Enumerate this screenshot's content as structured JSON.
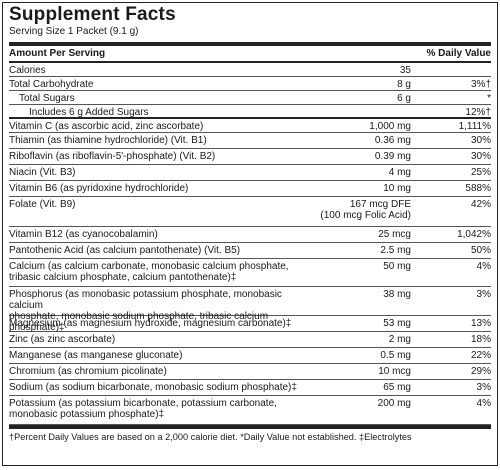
{
  "title": "Supplement Facts",
  "serving_size": "Serving Size 1 Packet (9.1 g)",
  "header": {
    "left": "Amount Per Serving",
    "right": "% Daily Value"
  },
  "rows": [
    {
      "name": "Calories",
      "amount": "35",
      "dv": "",
      "h": 14,
      "indent": 0
    },
    {
      "name": "Total Carbohydrate",
      "amount": "8 g",
      "dv": "3%†",
      "h": 14,
      "indent": 0
    },
    {
      "name": "Total Sugars",
      "amount": "6 g",
      "dv": "*",
      "h": 14,
      "indent": 1
    },
    {
      "name": "Includes 6 g Added Sugars",
      "amount": "",
      "dv": "12%†",
      "h": 14,
      "indent": 2,
      "thick": true
    },
    {
      "name": "Vitamin C (as ascorbic acid, zinc ascorbate)",
      "amount": "1,000 mg",
      "dv": "1,111%",
      "h": 14,
      "indent": 0
    },
    {
      "name": "Thiamin (as thiamine hydrochloride) (Vit. B1)",
      "amount": "0.36 mg",
      "dv": "30%",
      "h": 16,
      "indent": 0
    },
    {
      "name": "Riboflavin (as riboflavin-5'-phosphate) (Vit. B2)",
      "amount": "0.39 mg",
      "dv": "30%",
      "h": 16,
      "indent": 0
    },
    {
      "name": "Niacin (Vit. B3)",
      "amount": "4 mg",
      "dv": "25%",
      "h": 16,
      "indent": 0
    },
    {
      "name": "Vitamin B6 (as pyridoxine hydrochloride)",
      "amount": "10 mg",
      "dv": "588%",
      "h": 16,
      "indent": 0
    },
    {
      "name": "Folate (Vit. B9)",
      "amount": "167 mcg DFE\n(100 mcg Folic Acid)",
      "dv": "42%",
      "h": 30,
      "indent": 0
    },
    {
      "name": "Vitamin B12 (as cyanocobalamin)",
      "amount": "25 mcg",
      "dv": "1,042%",
      "h": 16,
      "indent": 0
    },
    {
      "name": "Pantothenic Acid (as calcium pantothenate) (Vit. B5)",
      "amount": "2.5 mg",
      "dv": "50%",
      "h": 16,
      "indent": 0
    },
    {
      "name": "Calcium (as calcium carbonate, monobasic calcium phosphate,\ntribasic calcium phosphate, calcium pantothenate)‡",
      "amount": "50 mg",
      "dv": "4%",
      "h": 28,
      "indent": 0
    },
    {
      "name": "Phosphorus (as monobasic potassium phosphate, monobasic calcium\nphosphate, monobasic sodium phosphate, tribasic calcium phosphate)‡",
      "amount": "38 mg",
      "dv": "3%",
      "h": 29,
      "indent": 0
    },
    {
      "name": "Magnesium (as magnesium hydroxide, magnesium carbonate)‡",
      "amount": "53 mg",
      "dv": "13%",
      "h": 16,
      "indent": 0
    },
    {
      "name": "Zinc (as zinc ascorbate)",
      "amount": "2 mg",
      "dv": "18%",
      "h": 16,
      "indent": 0
    },
    {
      "name": "Manganese (as manganese gluconate)",
      "amount": "0.5 mg",
      "dv": "22%",
      "h": 16,
      "indent": 0
    },
    {
      "name": "Chromium (as chromium picolinate)",
      "amount": "10 mcg",
      "dv": "29%",
      "h": 16,
      "indent": 0
    },
    {
      "name": "Sodium (as sodium bicarbonate, monobasic sodium phosphate)‡",
      "amount": "65 mg",
      "dv": "3%",
      "h": 16,
      "indent": 0
    },
    {
      "name": "Potassium (as potassium bicarbonate, potassium carbonate,\nmonobasic potassium phosphate)‡",
      "amount": "200 mg",
      "dv": "4%",
      "h": 29,
      "indent": 0
    }
  ],
  "footnote": "†Percent Daily Values are based on a 2,000 calorie diet.  *Daily Value not established.  ‡Electrolytes"
}
